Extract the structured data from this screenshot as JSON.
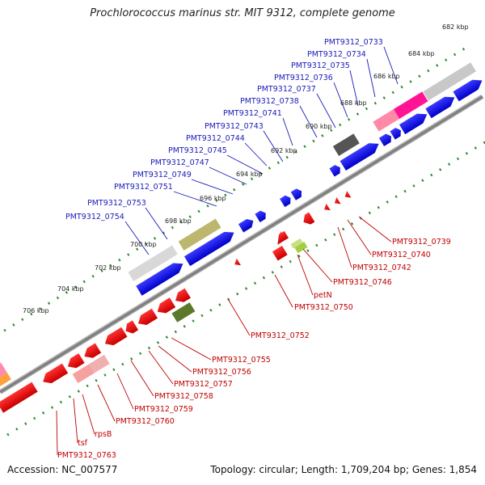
{
  "title": "Prochlorococcus marinus str. MIT 9312, complete genome",
  "accession": "Accession: NC_007577",
  "topology": "Topology: circular; Length: 1,709,204 bp; Genes: 1,854",
  "kbp_labels": [
    "682 kbp",
    "684 kbp",
    "686 kbp",
    "688 kbp",
    "690 kbp",
    "692 kbp",
    "694 kbp",
    "696 kbp",
    "698 kbp",
    "700 kbp",
    "702 kbp",
    "704 kbp",
    "706 kbp"
  ],
  "forward_gene_labels": [
    "PMT9312_0733",
    "PMT9312_0734",
    "PMT9312_0735",
    "PMT9312_0736",
    "PMT9312_0737",
    "PMT9312_0738",
    "PMT9312_0741",
    "PMT9312_0743",
    "PMT9312_0744",
    "PMT9312_0745",
    "PMT9312_0747",
    "PMT9312_0749",
    "PMT9312_0751",
    "PMT9312_0753",
    "PMT9312_0754"
  ],
  "reverse_gene_labels": [
    "PMT9312_0739",
    "PMT9312_0740",
    "PMT9312_0742",
    "PMT9312_0746",
    "petN",
    "PMT9312_0750",
    "PMT9312_0752",
    "PMT9312_0755",
    "PMT9312_0756",
    "PMT9312_0757",
    "PMT9312_0758",
    "PMT9312_0759",
    "PMT9312_0760",
    "rpsB",
    "tsf",
    "PMT9312_0763"
  ],
  "colors": {
    "forward_gene": "#0000e0",
    "reverse_gene": "#e00000",
    "backbone": "#888888",
    "tick": "#2a8a2a"
  }
}
